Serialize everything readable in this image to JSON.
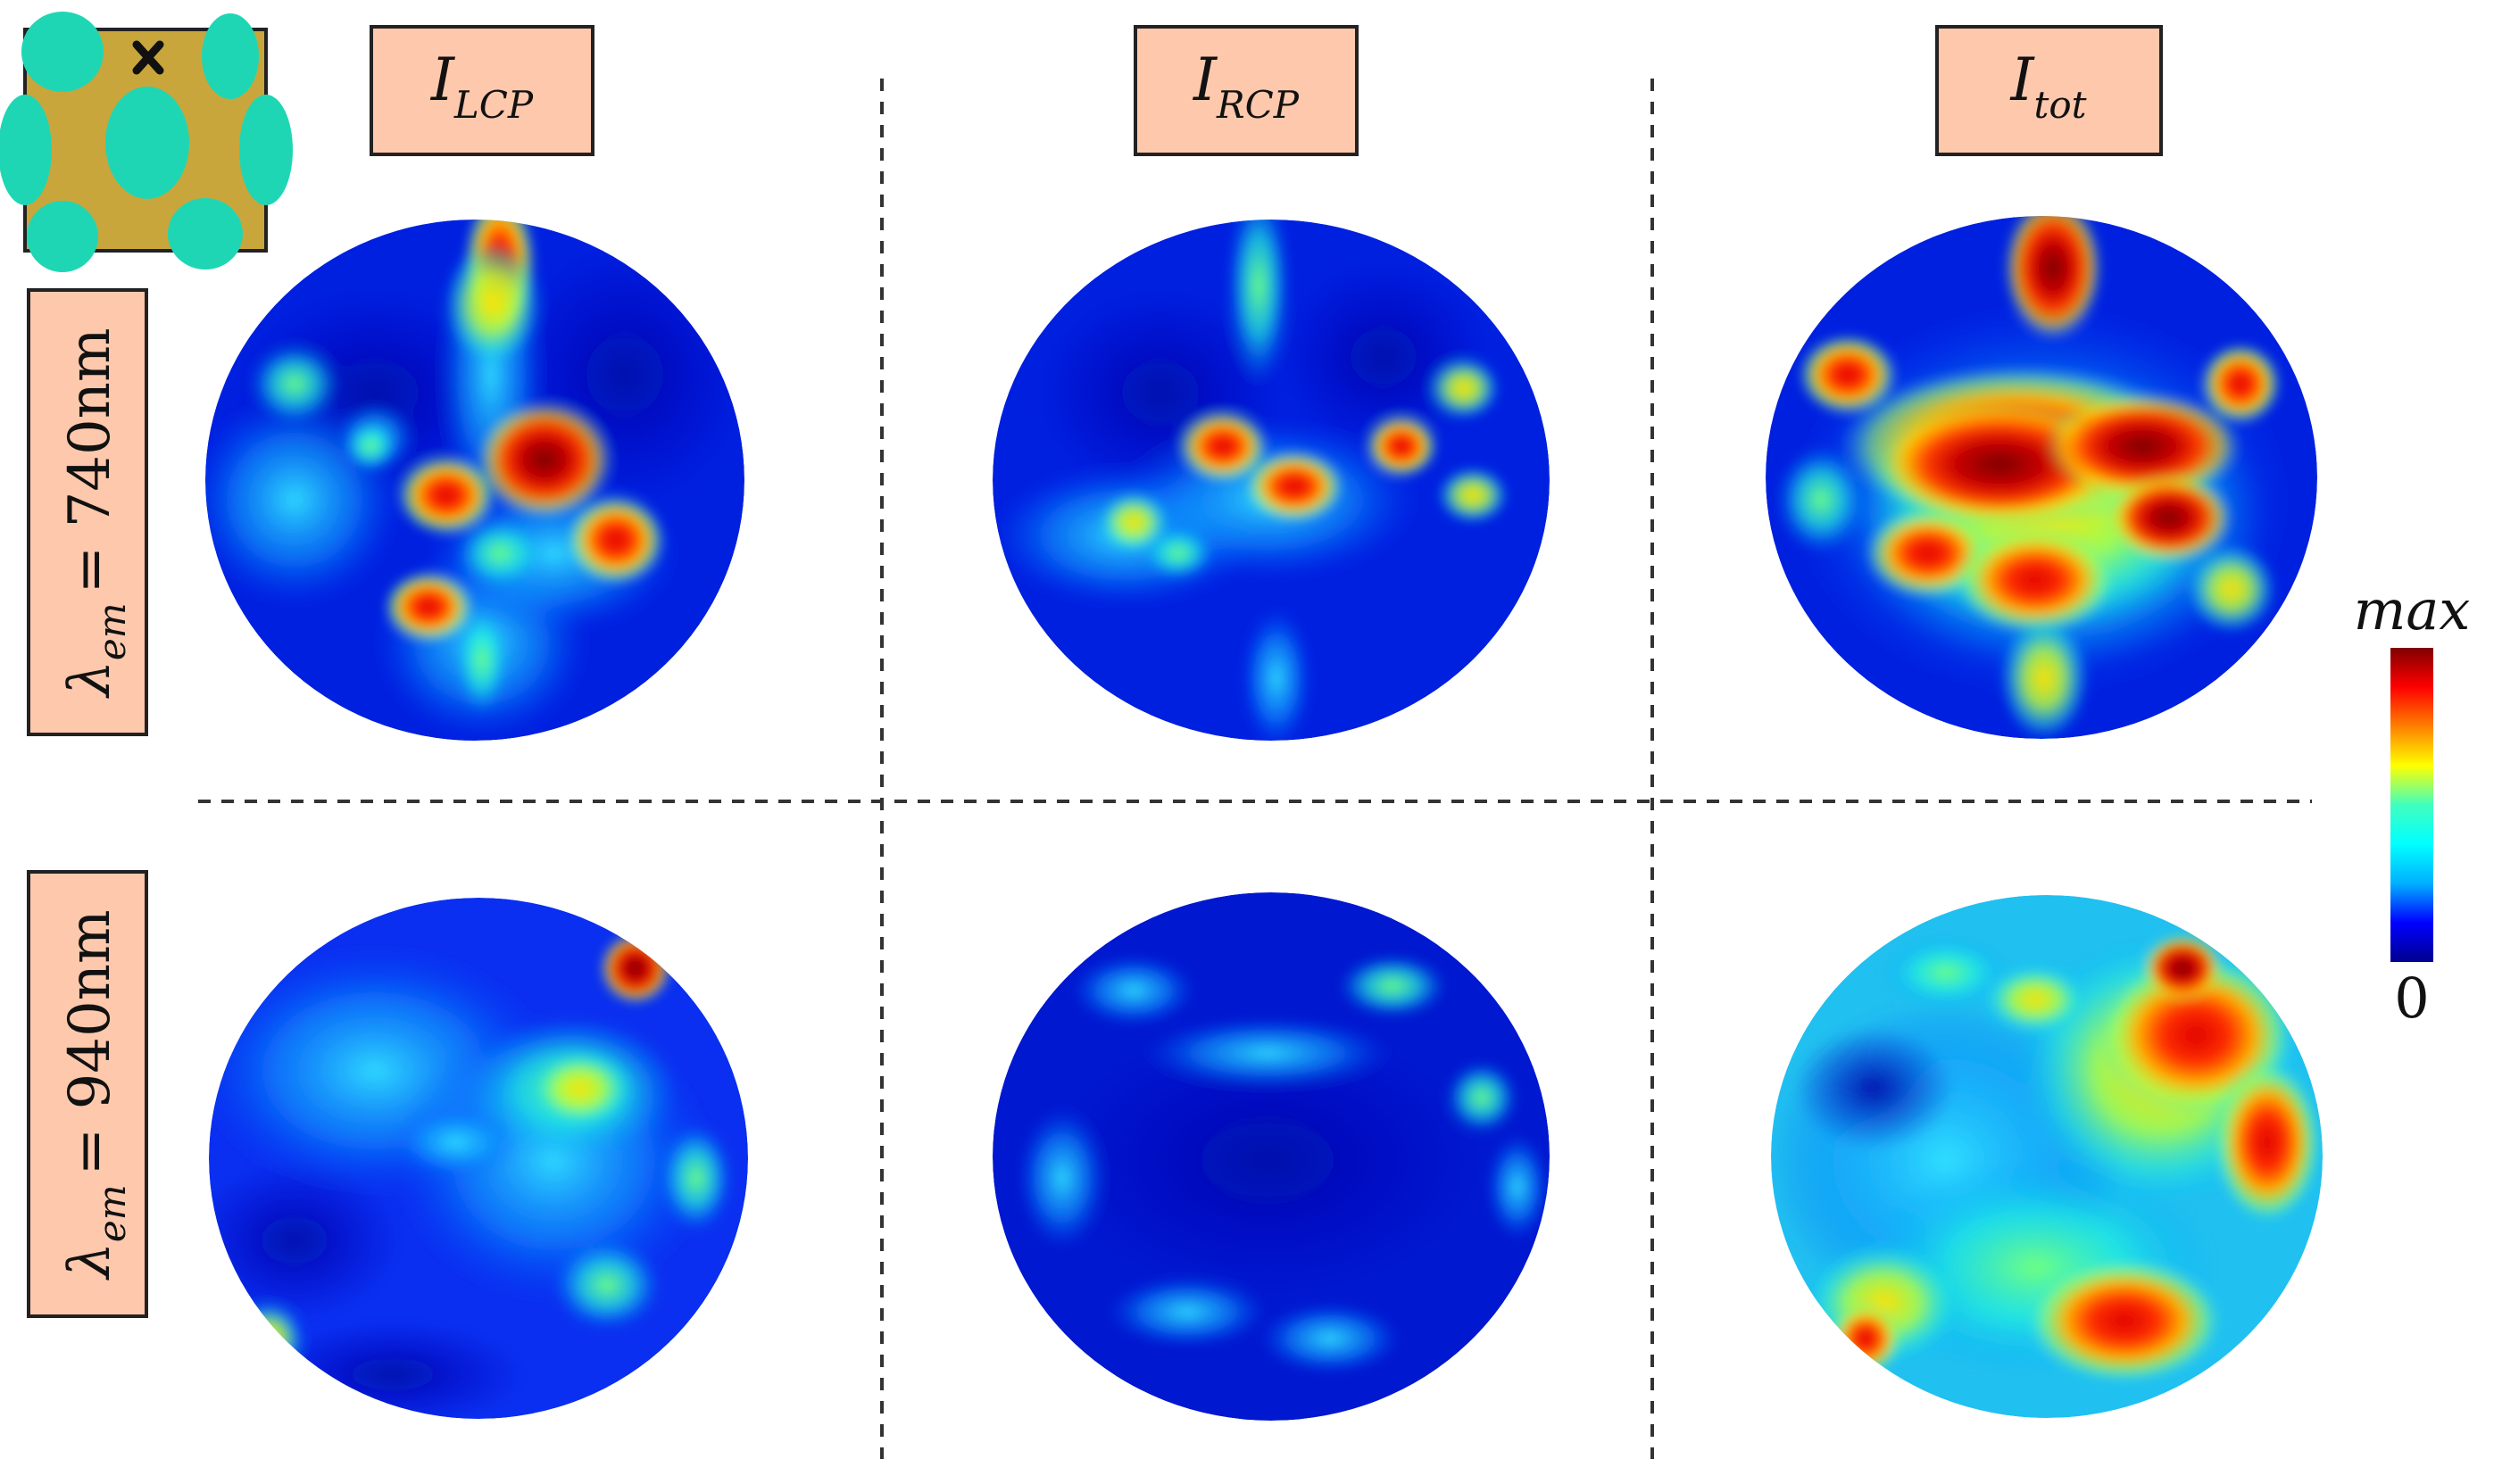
{
  "columns": [
    {
      "id": "lcp",
      "symbol": "I",
      "subscript": "LCP"
    },
    {
      "id": "rcp",
      "symbol": "I",
      "subscript": "RCP"
    },
    {
      "id": "tot",
      "symbol": "I",
      "subscript": "tot"
    }
  ],
  "rows": [
    {
      "id": "740",
      "symbol": "λ",
      "subscript": "em",
      "value": "= 740nm"
    },
    {
      "id": "940",
      "symbol": "λ",
      "subscript": "em",
      "value": "= 940nm"
    }
  ],
  "colorbar": {
    "max_label": "max",
    "min_label": "0",
    "colors": [
      "#00008f",
      "#0000ff",
      "#00b0ff",
      "#00ffff",
      "#40ffbf",
      "#ffff00",
      "#ff8000",
      "#ff0000",
      "#800000"
    ]
  },
  "inset": {
    "background_color": "#c8a63c",
    "hole_color": "#1fd6b4",
    "marker": "x-mark-icon"
  },
  "panel_colors": {
    "label_fill": "#fdc8ac",
    "label_border": "#222222",
    "divider_color": "#333333"
  }
}
